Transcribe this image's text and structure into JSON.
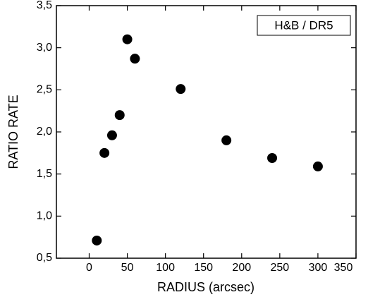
{
  "chart_data": {
    "type": "scatter",
    "annotation": "H&B / DR5",
    "xlabel": "RADIUS (arcsec)",
    "ylabel": "RATIO RATE",
    "x": [
      10,
      20,
      30,
      40,
      50,
      60,
      120,
      180,
      240,
      300
    ],
    "values": [
      0.71,
      1.75,
      1.96,
      2.2,
      3.1,
      2.87,
      2.51,
      1.9,
      1.69,
      1.59
    ],
    "color": "#000000",
    "xlim": [
      -43,
      350
    ],
    "xticks": [
      0,
      50,
      100,
      150,
      200,
      250,
      300,
      350
    ],
    "ylim": [
      0.5,
      3.5
    ],
    "yticks": [
      {
        "value": 0.5,
        "label": "0,5"
      },
      {
        "value": 1.0,
        "label": "1,0"
      },
      {
        "value": 1.5,
        "label": "1,5"
      },
      {
        "value": 2.0,
        "label": "2,0"
      },
      {
        "value": 2.5,
        "label": "2,5"
      },
      {
        "value": 3.0,
        "label": "3,0"
      },
      {
        "value": 3.5,
        "label": "3,5"
      }
    ],
    "grid": false
  }
}
